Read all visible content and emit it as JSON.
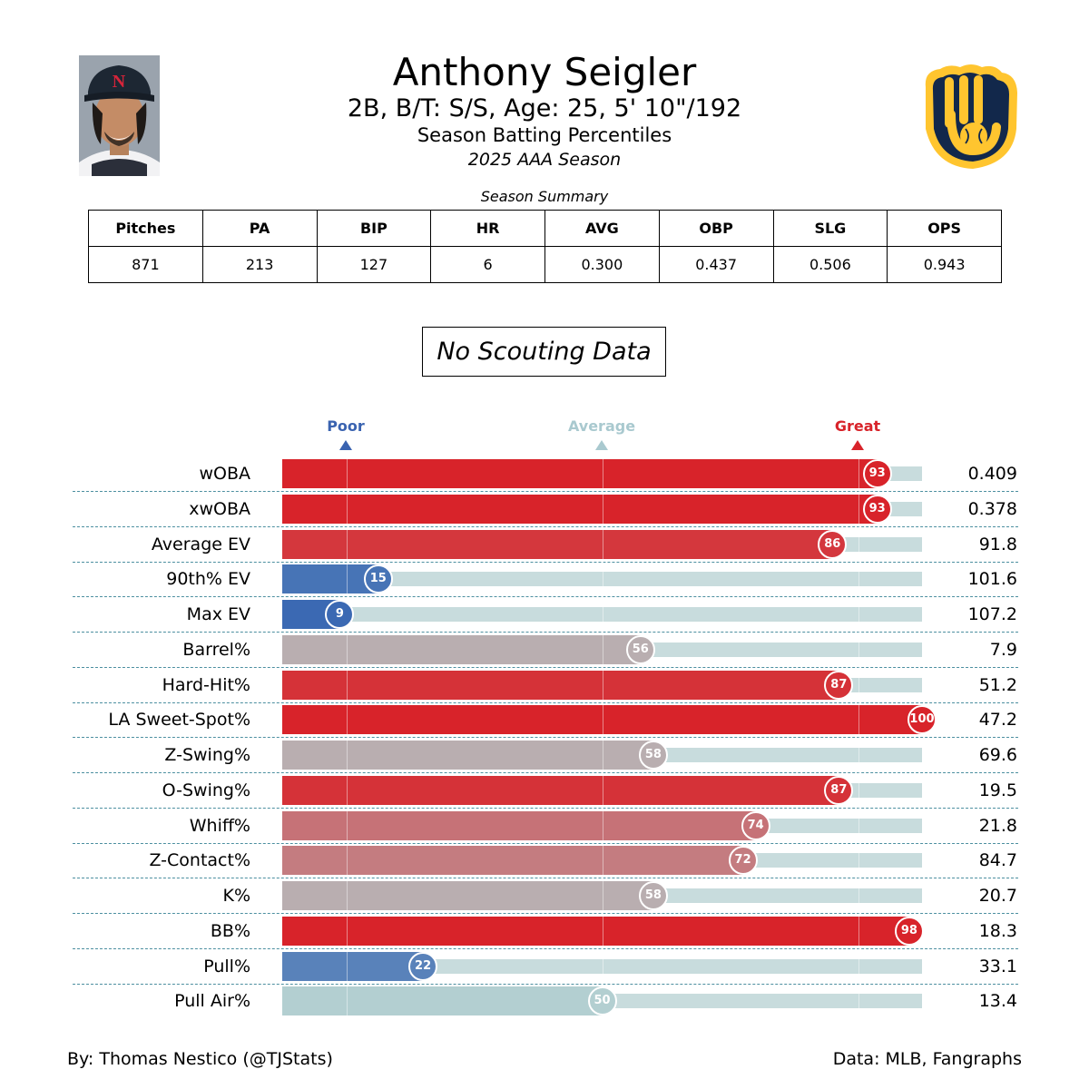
{
  "header": {
    "player_name": "Anthony Seigler",
    "player_info": "2B, B/T: S/S, Age: 25, 5' 10\"/192",
    "report_title": "Season Batting Percentiles",
    "season": "2025 AAA Season",
    "headshot_icon": "player-headshot-photo",
    "team_logo_icon": "milwaukee-brewers-ball-in-glove-logo",
    "cap_letter": "N"
  },
  "summary": {
    "title": "Season Summary",
    "headers": [
      "Pitches",
      "PA",
      "BIP",
      "HR",
      "AVG",
      "OBP",
      "SLG",
      "OPS"
    ],
    "values": [
      "871",
      "213",
      "127",
      "6",
      "0.300",
      "0.437",
      "0.506",
      "0.943"
    ]
  },
  "scouting": {
    "label": "No Scouting Data"
  },
  "legend": {
    "poor": "Poor",
    "average": "Average",
    "great": "Great",
    "poor_color": "#3a63b0",
    "average_color": "#a9c9cf",
    "great_color": "#d8232a"
  },
  "chart_data": {
    "type": "bar",
    "orientation": "horizontal",
    "xlim": [
      0,
      100
    ],
    "reference_lines": [
      10,
      50,
      90
    ],
    "categories": [
      "wOBA",
      "xwOBA",
      "Average EV",
      "90th% EV",
      "Max EV",
      "Barrel%",
      "Hard-Hit%",
      "LA Sweet-Spot%",
      "Z-Swing%",
      "O-Swing%",
      "Whiff%",
      "Z-Contact%",
      "K%",
      "BB%",
      "Pull%",
      "Pull Air%"
    ],
    "percentiles": [
      93,
      93,
      86,
      15,
      9,
      56,
      87,
      100,
      58,
      87,
      74,
      72,
      58,
      98,
      22,
      50
    ],
    "stat_values": [
      "0.409",
      "0.378",
      "91.8",
      "101.6",
      "107.2",
      "7.9",
      "51.2",
      "47.2",
      "69.6",
      "19.5",
      "21.8",
      "84.7",
      "20.7",
      "18.3",
      "33.1",
      "13.4"
    ],
    "track_color": "#c8dcdd",
    "separator_color": "#4c8fa0"
  },
  "footer": {
    "credit": "By: Thomas Nestico (@TJStats)",
    "source": "Data: MLB, Fangraphs"
  }
}
